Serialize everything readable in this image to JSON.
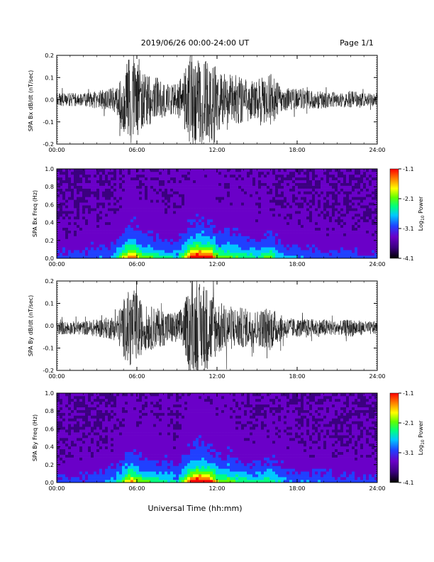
{
  "header": {
    "date_range": "2019/06/26  00:00-24:00 UT",
    "page": "Page 1/1"
  },
  "xlabel": "Universal Time (hh:mm)",
  "x_ticks": [
    "00:00",
    "06:00",
    "12:00",
    "18:00",
    "24:00"
  ],
  "x_range_hours": [
    0,
    24
  ],
  "colorbar": {
    "label_main": "Log",
    "label_sub": "10",
    "label_end": " Power",
    "ticks": [
      "-1.1",
      "-2.1",
      "-3.1",
      "-4.1"
    ],
    "range": [
      -4.1,
      -1.1
    ],
    "colors": [
      "#000000",
      "#3b007f",
      "#6a00c8",
      "#2040ff",
      "#00c8ff",
      "#00ff80",
      "#60ff00",
      "#ffff00",
      "#ff8000",
      "#ff0000"
    ]
  },
  "chart_data": [
    {
      "type": "line",
      "name": "Bx waveform",
      "ylabel": "SPA Bx dB/dt (nT/sec)",
      "ylim": [
        -0.2,
        0.2
      ],
      "y_ticks": [
        "0.2",
        "0.1",
        "0.0",
        "-0.1",
        "-0.2"
      ],
      "baseline": 0.0,
      "x_unit": "hours UT",
      "envelope": {
        "x": [
          0,
          2,
          3,
          4,
          4.5,
          5,
          5.5,
          6,
          6.5,
          7,
          8,
          9,
          9.5,
          10,
          10.5,
          11,
          11.5,
          12,
          13,
          14,
          15,
          16,
          16.5,
          17,
          18,
          19,
          20,
          21,
          22,
          23,
          24
        ],
        "y": [
          0.03,
          0.03,
          0.04,
          0.05,
          0.06,
          0.14,
          0.2,
          0.17,
          0.12,
          0.12,
          0.08,
          0.07,
          0.12,
          0.2,
          0.2,
          0.2,
          0.2,
          0.14,
          0.12,
          0.1,
          0.09,
          0.12,
          0.08,
          0.05,
          0.05,
          0.04,
          0.04,
          0.03,
          0.04,
          0.03,
          0.03
        ]
      }
    },
    {
      "type": "heatmap",
      "name": "Bx spectrogram",
      "ylabel": "SPA Bx Freq (Hz)",
      "ylim": [
        0.0,
        1.0
      ],
      "y_ticks": [
        "1.0",
        "0.8",
        "0.6",
        "0.4",
        "0.2",
        "0.0"
      ],
      "z_range": [
        -4.1,
        -1.1
      ],
      "activity": {
        "x": [
          0,
          2,
          3,
          4,
          4.5,
          5,
          5.5,
          6,
          6.5,
          7,
          8,
          9,
          9.5,
          10,
          10.5,
          11,
          11.5,
          12,
          13,
          14,
          15,
          16,
          16.5,
          17,
          18,
          19,
          20,
          21,
          22,
          23,
          24
        ],
        "level": [
          0.15,
          0.15,
          0.2,
          0.25,
          0.3,
          0.55,
          0.75,
          0.65,
          0.45,
          0.45,
          0.35,
          0.3,
          0.5,
          0.8,
          0.95,
          0.9,
          0.85,
          0.55,
          0.5,
          0.4,
          0.35,
          0.5,
          0.35,
          0.25,
          0.22,
          0.2,
          0.2,
          0.15,
          0.18,
          0.15,
          0.15
        ]
      }
    },
    {
      "type": "line",
      "name": "By waveform",
      "ylabel": "SPA By dB/dt (nT/sec)",
      "ylim": [
        -0.2,
        0.2
      ],
      "y_ticks": [
        "0.2",
        "0.1",
        "0.0",
        "-0.1",
        "-0.2"
      ],
      "baseline": -0.01,
      "x_unit": "hours UT",
      "envelope": {
        "x": [
          0,
          2,
          3,
          4,
          4.5,
          5,
          5.5,
          6,
          6.5,
          7,
          8,
          9,
          9.5,
          10,
          10.5,
          11,
          11.5,
          12,
          13,
          14,
          15,
          16,
          16.5,
          17,
          18,
          19,
          20,
          21,
          22,
          23,
          24
        ],
        "y": [
          0.03,
          0.03,
          0.04,
          0.05,
          0.06,
          0.13,
          0.18,
          0.16,
          0.1,
          0.1,
          0.08,
          0.07,
          0.1,
          0.2,
          0.2,
          0.2,
          0.18,
          0.12,
          0.1,
          0.09,
          0.08,
          0.1,
          0.07,
          0.05,
          0.04,
          0.04,
          0.04,
          0.03,
          0.04,
          0.03,
          0.03
        ]
      }
    },
    {
      "type": "heatmap",
      "name": "By spectrogram",
      "ylabel": "SPA By Freq (Hz)",
      "ylim": [
        0.0,
        1.0
      ],
      "y_ticks": [
        "1.0",
        "0.8",
        "0.6",
        "0.4",
        "0.2",
        "0.0"
      ],
      "z_range": [
        -4.1,
        -1.1
      ],
      "activity": {
        "x": [
          0,
          2,
          3,
          4,
          4.5,
          5,
          5.5,
          6,
          6.5,
          7,
          8,
          9,
          9.5,
          10,
          10.5,
          11,
          11.5,
          12,
          13,
          14,
          15,
          16,
          16.5,
          17,
          18,
          19,
          20,
          21,
          22,
          23,
          24
        ],
        "level": [
          0.15,
          0.15,
          0.2,
          0.25,
          0.3,
          0.5,
          0.7,
          0.6,
          0.45,
          0.45,
          0.35,
          0.3,
          0.5,
          0.8,
          0.95,
          0.9,
          0.85,
          0.55,
          0.5,
          0.4,
          0.35,
          0.45,
          0.35,
          0.25,
          0.22,
          0.2,
          0.2,
          0.15,
          0.18,
          0.15,
          0.15
        ]
      }
    }
  ]
}
